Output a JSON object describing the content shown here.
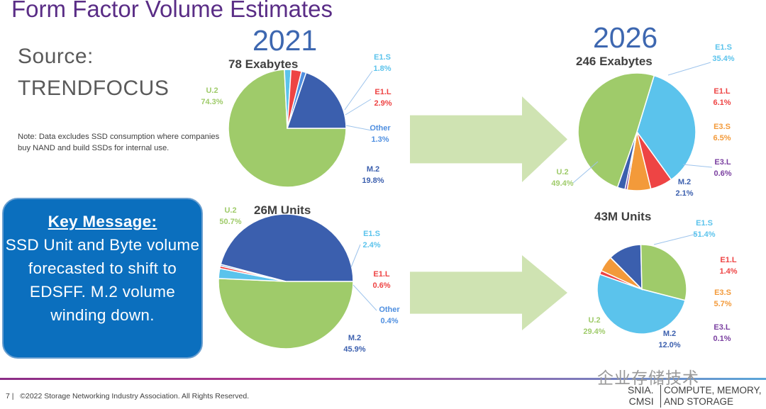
{
  "page": {
    "title": "Form Factor Volume Estimates",
    "year_left": "2021",
    "year_right": "2026",
    "source_line1": "Source:",
    "source_line2": "TRENDFOCUS",
    "note": "Note:  Data excludes SSD consumption where companies buy NAND and build SSDs for internal use.",
    "key_message_title": "Key Message:",
    "key_message_body": "SSD Unit and Byte volume forecasted to shift to EDSFF.  M.2 volume winding down.",
    "footer": "©2022 Storage Networking Industry Association. All Rights Reserved.",
    "page_number": "7",
    "watermark": "企业存储技术",
    "logo_line1": "SNIA.",
    "logo_line2": "CMSI",
    "logo_tag_line1": "COMPUTE, MEMORY,",
    "logo_tag_line2": "AND STORAGE"
  },
  "colors": {
    "U.2": "#9fcb6a",
    "E1.S": "#5bc3ec",
    "E1.L": "#ee4444",
    "E3.S": "#f39a3a",
    "E3.L": "#7a3fa0",
    "M.2": "#3b5fae",
    "Other": "#4f8fe0",
    "arrow": "#cfe3b2"
  },
  "chart_data": [
    {
      "type": "pie",
      "title": "78 Exabytes",
      "slices": [
        {
          "label": "U.2",
          "value": 74.3,
          "display": "74.3%"
        },
        {
          "label": "E1.S",
          "value": 1.8,
          "display": "1.8%"
        },
        {
          "label": "E1.L",
          "value": 2.9,
          "display": "2.9%"
        },
        {
          "label": "Other",
          "value": 1.3,
          "display": "1.3%"
        },
        {
          "label": "M.2",
          "value": 19.8,
          "display": "19.8%"
        }
      ]
    },
    {
      "type": "pie",
      "title": "246 Exabytes",
      "slices": [
        {
          "label": "E1.S",
          "value": 35.4,
          "display": "35.4%"
        },
        {
          "label": "E1.L",
          "value": 6.1,
          "display": "6.1%"
        },
        {
          "label": "E3.S",
          "value": 6.5,
          "display": "6.5%"
        },
        {
          "label": "E3.L",
          "value": 0.6,
          "display": "0.6%"
        },
        {
          "label": "M.2",
          "value": 2.1,
          "display": "2.1%"
        },
        {
          "label": "U.2",
          "value": 49.4,
          "display": "49.4%"
        }
      ]
    },
    {
      "type": "pie",
      "title": "26M Units",
      "slices": [
        {
          "label": "U.2",
          "value": 50.7,
          "display": "50.7%"
        },
        {
          "label": "E1.S",
          "value": 2.4,
          "display": "2.4%"
        },
        {
          "label": "E1.L",
          "value": 0.6,
          "display": "0.6%"
        },
        {
          "label": "Other",
          "value": 0.4,
          "display": "0.4%"
        },
        {
          "label": "M.2",
          "value": 45.9,
          "display": "45.9%"
        }
      ]
    },
    {
      "type": "pie",
      "title": "43M Units",
      "slices": [
        {
          "label": "E1.S",
          "value": 51.4,
          "display": "51.4%"
        },
        {
          "label": "E1.L",
          "value": 1.4,
          "display": "1.4%"
        },
        {
          "label": "E3.S",
          "value": 5.7,
          "display": "5.7%"
        },
        {
          "label": "E3.L",
          "value": 0.1,
          "display": "0.1%"
        },
        {
          "label": "M.2",
          "value": 12.0,
          "display": "12.0%"
        },
        {
          "label": "U.2",
          "value": 29.4,
          "display": "29.4%"
        }
      ]
    }
  ]
}
